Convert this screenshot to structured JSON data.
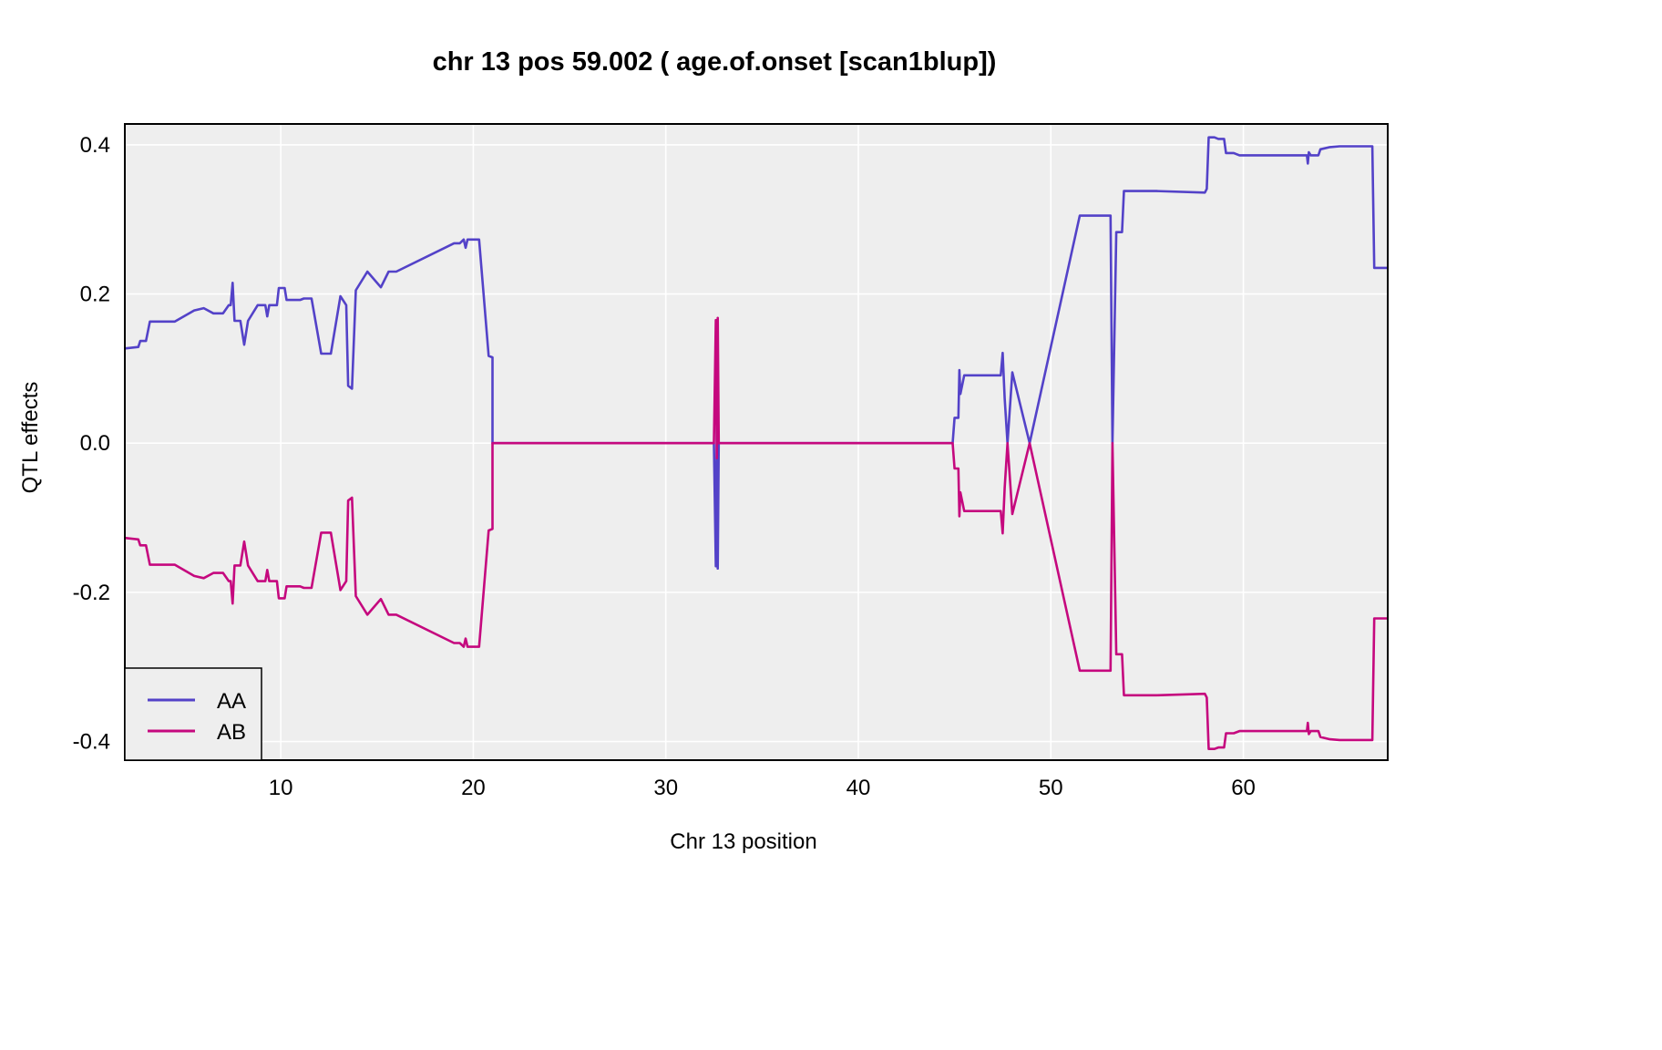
{
  "chart_data": {
    "type": "line",
    "title": "chr 13 pos 59.002 ( age.of.onset  [scan1blup])",
    "xlabel": "Chr 13 position",
    "ylabel": "QTL effects",
    "xlim": [
      1.9,
      67.5
    ],
    "ylim": [
      -0.425,
      0.428
    ],
    "x_ticks": [
      10,
      20,
      30,
      40,
      50,
      60
    ],
    "x_tick_labels": [
      "10",
      "20",
      "30",
      "40",
      "50",
      "60"
    ],
    "y_ticks": [
      -0.4,
      -0.2,
      0.0,
      0.2,
      0.4
    ],
    "y_tick_labels": [
      "-0.4",
      "-0.2",
      "0.0",
      "0.2",
      "0.4"
    ],
    "grid": true,
    "background": "#eeeeee",
    "legend_position": "bottom-left",
    "series": [
      {
        "name": "AA",
        "color": "#5342c8",
        "points": [
          [
            1.9,
            0.127
          ],
          [
            2.6,
            0.129
          ],
          [
            2.7,
            0.137
          ],
          [
            3.0,
            0.137
          ],
          [
            3.2,
            0.163
          ],
          [
            4.0,
            0.163
          ],
          [
            4.5,
            0.163
          ],
          [
            5.5,
            0.178
          ],
          [
            6.0,
            0.181
          ],
          [
            6.5,
            0.174
          ],
          [
            7.0,
            0.174
          ],
          [
            7.3,
            0.185
          ],
          [
            7.4,
            0.185
          ],
          [
            7.5,
            0.215
          ],
          [
            7.6,
            0.164
          ],
          [
            7.9,
            0.164
          ],
          [
            8.1,
            0.132
          ],
          [
            8.3,
            0.164
          ],
          [
            8.8,
            0.185
          ],
          [
            9.2,
            0.185
          ],
          [
            9.3,
            0.17
          ],
          [
            9.4,
            0.185
          ],
          [
            9.8,
            0.185
          ],
          [
            9.9,
            0.208
          ],
          [
            10.2,
            0.208
          ],
          [
            10.3,
            0.192
          ],
          [
            11.0,
            0.192
          ],
          [
            11.2,
            0.194
          ],
          [
            11.6,
            0.194
          ],
          [
            12.1,
            0.12
          ],
          [
            12.6,
            0.12
          ],
          [
            13.1,
            0.197
          ],
          [
            13.4,
            0.185
          ],
          [
            13.5,
            0.077
          ],
          [
            13.7,
            0.073
          ],
          [
            13.9,
            0.205
          ],
          [
            14.5,
            0.23
          ],
          [
            15.2,
            0.209
          ],
          [
            15.6,
            0.23
          ],
          [
            16.0,
            0.23
          ],
          [
            19.0,
            0.268
          ],
          [
            19.3,
            0.268
          ],
          [
            19.5,
            0.273
          ],
          [
            19.6,
            0.262
          ],
          [
            19.7,
            0.273
          ],
          [
            20.3,
            0.273
          ],
          [
            20.8,
            0.117
          ],
          [
            21.0,
            0.115
          ],
          [
            21.0,
            0.0
          ],
          [
            32.5,
            0.0
          ],
          [
            32.6,
            -0.165
          ],
          [
            32.65,
            0.02
          ],
          [
            32.7,
            -0.168
          ],
          [
            32.75,
            0.0
          ],
          [
            44.9,
            0.0
          ],
          [
            45.0,
            0.034
          ],
          [
            45.2,
            0.034
          ],
          [
            45.25,
            0.098
          ],
          [
            45.3,
            0.066
          ],
          [
            45.5,
            0.091
          ],
          [
            46.5,
            0.091
          ],
          [
            47.4,
            0.091
          ],
          [
            47.5,
            0.121
          ],
          [
            47.6,
            0.06
          ],
          [
            47.75,
            0.0
          ],
          [
            48.0,
            0.095
          ],
          [
            48.9,
            0.0
          ],
          [
            51.5,
            0.305
          ],
          [
            53.1,
            0.305
          ],
          [
            53.2,
            0.0
          ],
          [
            53.4,
            0.283
          ],
          [
            53.7,
            0.283
          ],
          [
            53.8,
            0.338
          ],
          [
            55.5,
            0.338
          ],
          [
            58.0,
            0.336
          ],
          [
            58.1,
            0.341
          ],
          [
            58.2,
            0.41
          ],
          [
            58.5,
            0.41
          ],
          [
            58.7,
            0.408
          ],
          [
            59.0,
            0.408
          ],
          [
            59.1,
            0.389
          ],
          [
            59.5,
            0.389
          ],
          [
            59.8,
            0.386
          ],
          [
            63.3,
            0.386
          ],
          [
            63.35,
            0.375
          ],
          [
            63.4,
            0.39
          ],
          [
            63.5,
            0.386
          ],
          [
            63.9,
            0.386
          ],
          [
            64.0,
            0.394
          ],
          [
            64.5,
            0.397
          ],
          [
            65.0,
            0.398
          ],
          [
            65.5,
            0.398
          ],
          [
            66.7,
            0.398
          ],
          [
            66.8,
            0.235
          ],
          [
            67.5,
            0.235
          ]
        ]
      },
      {
        "name": "AB",
        "color": "#c5087e",
        "points": [
          [
            1.9,
            -0.127
          ],
          [
            2.6,
            -0.129
          ],
          [
            2.7,
            -0.137
          ],
          [
            3.0,
            -0.137
          ],
          [
            3.2,
            -0.163
          ],
          [
            4.0,
            -0.163
          ],
          [
            4.5,
            -0.163
          ],
          [
            5.5,
            -0.178
          ],
          [
            6.0,
            -0.181
          ],
          [
            6.5,
            -0.174
          ],
          [
            7.0,
            -0.174
          ],
          [
            7.3,
            -0.185
          ],
          [
            7.4,
            -0.185
          ],
          [
            7.5,
            -0.215
          ],
          [
            7.6,
            -0.164
          ],
          [
            7.9,
            -0.164
          ],
          [
            8.1,
            -0.132
          ],
          [
            8.3,
            -0.164
          ],
          [
            8.8,
            -0.185
          ],
          [
            9.2,
            -0.185
          ],
          [
            9.3,
            -0.17
          ],
          [
            9.4,
            -0.185
          ],
          [
            9.8,
            -0.185
          ],
          [
            9.9,
            -0.208
          ],
          [
            10.2,
            -0.208
          ],
          [
            10.3,
            -0.192
          ],
          [
            11.0,
            -0.192
          ],
          [
            11.2,
            -0.194
          ],
          [
            11.6,
            -0.194
          ],
          [
            12.1,
            -0.12
          ],
          [
            12.6,
            -0.12
          ],
          [
            13.1,
            -0.197
          ],
          [
            13.4,
            -0.185
          ],
          [
            13.5,
            -0.077
          ],
          [
            13.7,
            -0.073
          ],
          [
            13.9,
            -0.205
          ],
          [
            14.5,
            -0.23
          ],
          [
            15.2,
            -0.209
          ],
          [
            15.6,
            -0.23
          ],
          [
            16.0,
            -0.23
          ],
          [
            19.0,
            -0.268
          ],
          [
            19.3,
            -0.268
          ],
          [
            19.5,
            -0.273
          ],
          [
            19.6,
            -0.262
          ],
          [
            19.7,
            -0.273
          ],
          [
            20.3,
            -0.273
          ],
          [
            20.8,
            -0.117
          ],
          [
            21.0,
            -0.115
          ],
          [
            21.0,
            0.0
          ],
          [
            32.5,
            0.0
          ],
          [
            32.6,
            0.165
          ],
          [
            32.65,
            -0.02
          ],
          [
            32.7,
            0.168
          ],
          [
            32.75,
            0.0
          ],
          [
            44.9,
            0.0
          ],
          [
            45.0,
            -0.034
          ],
          [
            45.2,
            -0.034
          ],
          [
            45.25,
            -0.098
          ],
          [
            45.3,
            -0.066
          ],
          [
            45.5,
            -0.091
          ],
          [
            46.5,
            -0.091
          ],
          [
            47.4,
            -0.091
          ],
          [
            47.5,
            -0.121
          ],
          [
            47.6,
            -0.06
          ],
          [
            47.75,
            0.0
          ],
          [
            48.0,
            -0.095
          ],
          [
            48.9,
            0.0
          ],
          [
            51.5,
            -0.305
          ],
          [
            53.1,
            -0.305
          ],
          [
            53.2,
            0.0
          ],
          [
            53.4,
            -0.283
          ],
          [
            53.7,
            -0.283
          ],
          [
            53.8,
            -0.338
          ],
          [
            55.5,
            -0.338
          ],
          [
            58.0,
            -0.336
          ],
          [
            58.1,
            -0.341
          ],
          [
            58.2,
            -0.41
          ],
          [
            58.5,
            -0.41
          ],
          [
            58.7,
            -0.408
          ],
          [
            59.0,
            -0.408
          ],
          [
            59.1,
            -0.389
          ],
          [
            59.5,
            -0.389
          ],
          [
            59.8,
            -0.386
          ],
          [
            63.3,
            -0.386
          ],
          [
            63.35,
            -0.375
          ],
          [
            63.4,
            -0.39
          ],
          [
            63.5,
            -0.386
          ],
          [
            63.9,
            -0.386
          ],
          [
            64.0,
            -0.394
          ],
          [
            64.5,
            -0.397
          ],
          [
            65.0,
            -0.398
          ],
          [
            65.5,
            -0.398
          ],
          [
            66.7,
            -0.398
          ],
          [
            66.8,
            -0.235
          ],
          [
            67.5,
            -0.235
          ]
        ]
      }
    ]
  }
}
